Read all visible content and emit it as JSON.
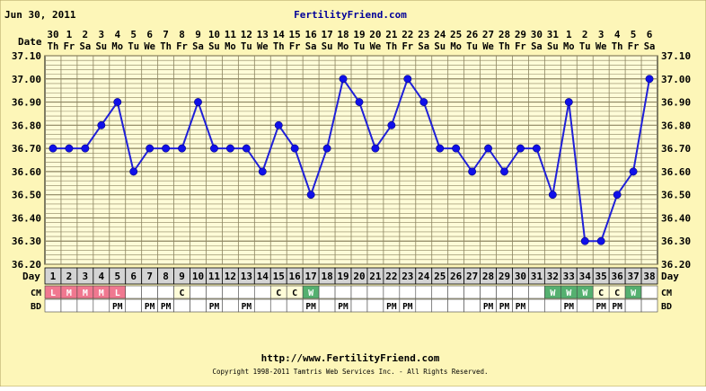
{
  "header": {
    "date": "Jun 30, 2011",
    "site": "FertilityFriend.com",
    "date_row_label": "Date",
    "day_row_label": "Day",
    "cm_row_label": "CM",
    "bd_row_label": "BD"
  },
  "footer": {
    "url": "http://www.FertilityFriend.com",
    "copyright": "Copyright 1998-2011 Tamtris Web Services Inc. - All Rights Reserved."
  },
  "colors": {
    "background": "#fefcd8",
    "frame": "#fdf6b8",
    "grid": "#8c8460",
    "line": "#2020d8",
    "point": "#1010e8",
    "title": "#000099",
    "day_cell": "#d4d4d4",
    "cm_L": "#f07890",
    "cm_M": "#f07890",
    "cm_W": "#55b070",
    "cm_C": "#fefcd8"
  },
  "chart_data": {
    "type": "line",
    "ylim": [
      36.2,
      37.1
    ],
    "yticks": [
      "36.20",
      "36.30",
      "36.40",
      "36.50",
      "36.60",
      "36.70",
      "36.80",
      "36.90",
      "37.00",
      "37.10"
    ],
    "dates": [
      "30",
      "1",
      "2",
      "3",
      "4",
      "5",
      "6",
      "7",
      "8",
      "9",
      "10",
      "11",
      "12",
      "13",
      "14",
      "15",
      "16",
      "17",
      "18",
      "19",
      "20",
      "21",
      "22",
      "23",
      "24",
      "25",
      "26",
      "27",
      "28",
      "29",
      "30",
      "31",
      "1",
      "2",
      "3",
      "4",
      "5",
      "6"
    ],
    "weekdays": [
      "Th",
      "Fr",
      "Sa",
      "Su",
      "Mo",
      "Tu",
      "We",
      "Th",
      "Fr",
      "Sa",
      "Su",
      "Mo",
      "Tu",
      "We",
      "Th",
      "Fr",
      "Sa",
      "Su",
      "Mo",
      "Tu",
      "We",
      "Th",
      "Fr",
      "Sa",
      "Su",
      "Mo",
      "Tu",
      "We",
      "Th",
      "Fr",
      "Sa",
      "Su",
      "Mo",
      "Tu",
      "We",
      "Th",
      "Fr",
      "Sa"
    ],
    "days": [
      "1",
      "2",
      "3",
      "4",
      "5",
      "6",
      "7",
      "8",
      "9",
      "10",
      "11",
      "12",
      "13",
      "14",
      "15",
      "16",
      "17",
      "18",
      "19",
      "20",
      "21",
      "22",
      "23",
      "24",
      "25",
      "26",
      "27",
      "28",
      "29",
      "30",
      "31",
      "32",
      "33",
      "34",
      "35",
      "36",
      "37",
      "38"
    ],
    "temperatures": [
      36.7,
      36.7,
      36.7,
      36.8,
      36.9,
      36.6,
      36.7,
      36.7,
      36.7,
      36.9,
      36.7,
      36.7,
      36.7,
      36.6,
      36.8,
      36.7,
      36.5,
      36.7,
      37.0,
      36.9,
      36.7,
      36.8,
      37.0,
      36.9,
      36.7,
      36.7,
      36.6,
      36.7,
      36.6,
      36.7,
      36.7,
      36.5,
      36.9,
      36.3,
      36.3,
      36.5,
      36.6,
      37.0
    ],
    "cm": [
      "L",
      "M",
      "M",
      "M",
      "L",
      "",
      "",
      "",
      "C",
      "",
      "",
      "",
      "",
      "",
      "C",
      "C",
      "W",
      "",
      "",
      "",
      "",
      "",
      "",
      "",
      "",
      "",
      "",
      "",
      "",
      "",
      "",
      "W",
      "W",
      "W",
      "C",
      "C",
      "W",
      ""
    ],
    "bd": [
      "",
      "",
      "",
      "",
      "PM",
      "",
      "PM",
      "PM",
      "",
      "",
      "PM",
      "",
      "PM",
      "",
      "",
      "",
      "PM",
      "",
      "PM",
      "",
      "",
      "PM",
      "PM",
      "",
      "",
      "",
      "",
      "PM",
      "PM",
      "PM",
      "",
      "",
      "PM",
      "",
      "PM",
      "PM",
      "",
      ""
    ]
  }
}
